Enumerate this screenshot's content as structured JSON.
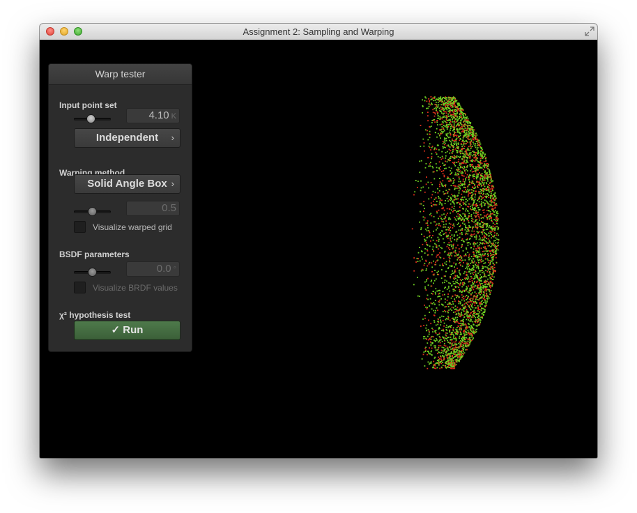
{
  "window": {
    "title": "Assignment 2: Sampling and Warping"
  },
  "colors": {
    "point_green": "#6fcf22",
    "point_red": "#e0301c",
    "run_button": "#46703f"
  },
  "panel": {
    "title": "Warp tester",
    "input_point_set": {
      "label": "Input point set",
      "point_count": "4.10",
      "point_count_unit": "K",
      "mode": "Independent"
    },
    "warping": {
      "label": "Warping method",
      "method": "Solid Angle Box",
      "parameter_value": "0.5",
      "visualize_grid_label": "Visualize warped grid"
    },
    "bsdf": {
      "label": "BSDF parameters",
      "value": "0.0",
      "visualize_brdf_label": "Visualize BRDF values"
    },
    "hypothesis": {
      "label": "χ² hypothesis test",
      "run_label": "✓ Run"
    }
  }
}
